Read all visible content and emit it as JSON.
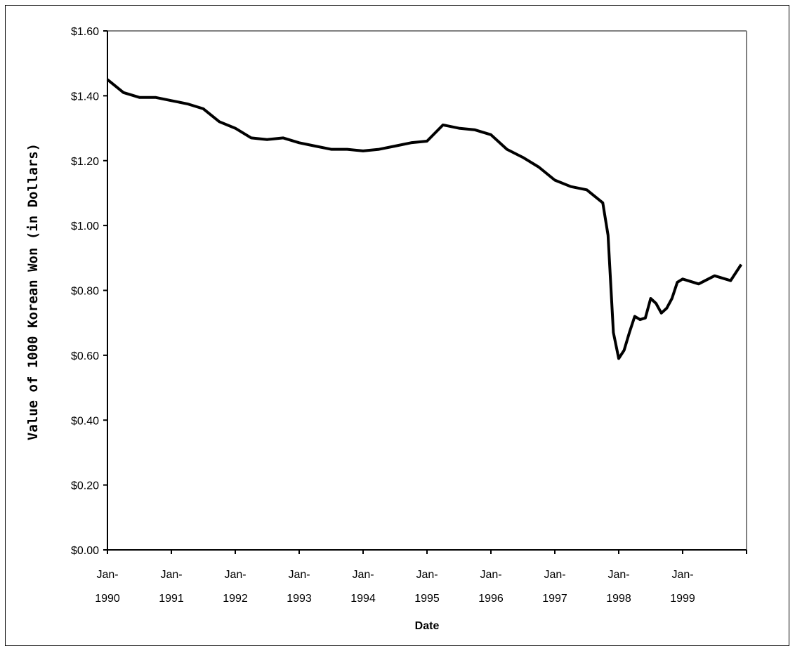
{
  "chart_data": {
    "type": "line",
    "title": "",
    "xlabel": "Date",
    "ylabel": "Value of 1000 Korean Won (in Dollars)",
    "ylim": [
      0,
      1.6
    ],
    "xlim": [
      "1990-01",
      "2000-01"
    ],
    "y_ticks": [
      "$0.00",
      "$0.20",
      "$0.40",
      "$0.60",
      "$0.80",
      "$1.00",
      "$1.20",
      "$1.40",
      "$1.60"
    ],
    "x_tick_labels": [
      {
        "line1": "Jan-",
        "line2": "1990"
      },
      {
        "line1": "Jan-",
        "line2": "1991"
      },
      {
        "line1": "Jan-",
        "line2": "1992"
      },
      {
        "line1": "Jan-",
        "line2": "1993"
      },
      {
        "line1": "Jan-",
        "line2": "1994"
      },
      {
        "line1": "Jan-",
        "line2": "1995"
      },
      {
        "line1": "Jan-",
        "line2": "1996"
      },
      {
        "line1": "Jan-",
        "line2": "1997"
      },
      {
        "line1": "Jan-",
        "line2": "1998"
      },
      {
        "line1": "Jan-",
        "line2": "1999"
      }
    ],
    "grid": false,
    "line_color": "#000000",
    "series": [
      {
        "x": [
          "1990-01",
          "1990-04",
          "1990-07",
          "1990-10",
          "1991-01",
          "1991-04",
          "1991-07",
          "1991-10",
          "1992-01",
          "1992-04",
          "1992-07",
          "1992-10",
          "1993-01",
          "1993-04",
          "1993-07",
          "1993-10",
          "1994-01",
          "1994-04",
          "1994-07",
          "1994-10",
          "1995-01",
          "1995-04",
          "1995-07",
          "1995-10",
          "1996-01",
          "1996-04",
          "1996-07",
          "1996-10",
          "1997-01",
          "1997-04",
          "1997-07",
          "1997-10",
          "1997-11",
          "1997-12",
          "1998-01",
          "1998-02",
          "1998-03",
          "1998-04",
          "1998-05",
          "1998-06",
          "1998-07",
          "1998-08",
          "1998-09",
          "1998-10",
          "1998-11",
          "1998-12",
          "1999-01",
          "1999-04",
          "1999-07",
          "1999-10",
          "1999-12"
        ],
        "values": [
          1.45,
          1.41,
          1.395,
          1.395,
          1.385,
          1.375,
          1.36,
          1.32,
          1.3,
          1.27,
          1.265,
          1.27,
          1.255,
          1.245,
          1.235,
          1.235,
          1.23,
          1.235,
          1.245,
          1.255,
          1.26,
          1.31,
          1.3,
          1.295,
          1.28,
          1.235,
          1.21,
          1.18,
          1.14,
          1.12,
          1.11,
          1.07,
          0.97,
          0.67,
          0.59,
          0.615,
          0.67,
          0.72,
          0.71,
          0.715,
          0.775,
          0.76,
          0.73,
          0.745,
          0.775,
          0.825,
          0.835,
          0.82,
          0.845,
          0.83,
          0.88
        ]
      }
    ]
  }
}
